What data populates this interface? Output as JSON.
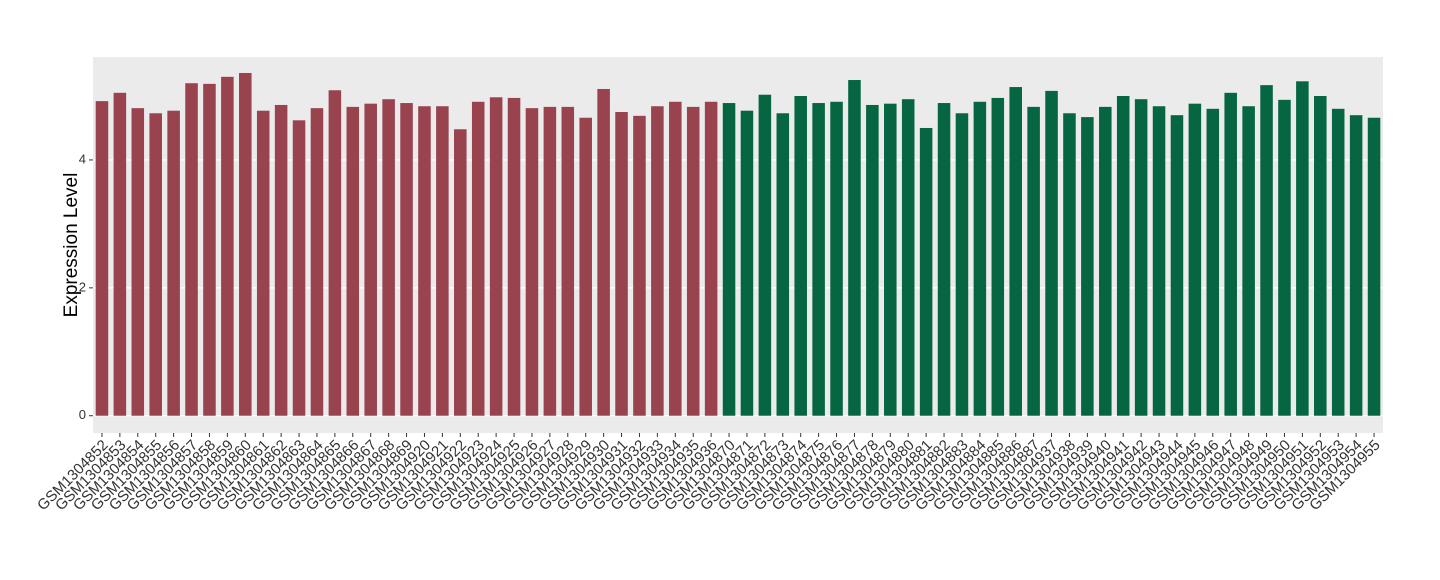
{
  "chart_data": {
    "type": "bar",
    "y_label": "Expression Level",
    "categories": [
      "GSM1304852",
      "GSM1304853",
      "GSM1304854",
      "GSM1304855",
      "GSM1304856",
      "GSM1304857",
      "GSM1304858",
      "GSM1304859",
      "GSM1304860",
      "GSM1304861",
      "GSM1304862",
      "GSM1304863",
      "GSM1304864",
      "GSM1304865",
      "GSM1304866",
      "GSM1304867",
      "GSM1304868",
      "GSM1304869",
      "GSM1304920",
      "GSM1304921",
      "GSM1304922",
      "GSM1304923",
      "GSM1304924",
      "GSM1304925",
      "GSM1304926",
      "GSM1304927",
      "GSM1304928",
      "GSM1304929",
      "GSM1304930",
      "GSM1304931",
      "GSM1304932",
      "GSM1304933",
      "GSM1304934",
      "GSM1304935",
      "GSM1304936",
      "GSM1304870",
      "GSM1304871",
      "GSM1304872",
      "GSM1304873",
      "GSM1304874",
      "GSM1304875",
      "GSM1304876",
      "GSM1304877",
      "GSM1304878",
      "GSM1304879",
      "GSM1304880",
      "GSM1304881",
      "GSM1304882",
      "GSM1304883",
      "GSM1304884",
      "GSM1304885",
      "GSM1304886",
      "GSM1304887",
      "GSM1304937",
      "GSM1304938",
      "GSM1304939",
      "GSM1304940",
      "GSM1304941",
      "GSM1304942",
      "GSM1304943",
      "GSM1304944",
      "GSM1304945",
      "GSM1304946",
      "GSM1304947",
      "GSM1304948",
      "GSM1304949",
      "GSM1304950",
      "GSM1304951",
      "GSM1304952",
      "GSM1304953",
      "GSM1304954",
      "GSM1304955"
    ],
    "values": [
      4.92,
      5.05,
      4.81,
      4.73,
      4.77,
      5.2,
      5.19,
      5.3,
      5.36,
      4.77,
      4.86,
      4.62,
      4.81,
      5.09,
      4.83,
      4.88,
      4.95,
      4.89,
      4.84,
      4.84,
      4.48,
      4.91,
      4.98,
      4.97,
      4.81,
      4.83,
      4.83,
      4.66,
      5.11,
      4.75,
      4.69,
      4.84,
      4.91,
      4.83,
      4.91,
      4.89,
      4.77,
      5.02,
      4.73,
      5.0,
      4.89,
      4.91,
      5.25,
      4.86,
      4.88,
      4.95,
      4.5,
      4.89,
      4.73,
      4.91,
      4.97,
      5.14,
      4.83,
      5.08,
      4.73,
      4.67,
      4.83,
      5.0,
      4.95,
      4.84,
      4.7,
      4.88,
      4.8,
      5.05,
      4.84,
      5.17,
      4.94,
      5.23,
      5.0,
      4.8,
      4.7,
      4.66
    ],
    "colors": [
      "#99434f",
      "#99434f",
      "#99434f",
      "#99434f",
      "#99434f",
      "#99434f",
      "#99434f",
      "#99434f",
      "#99434f",
      "#99434f",
      "#99434f",
      "#99434f",
      "#99434f",
      "#99434f",
      "#99434f",
      "#99434f",
      "#99434f",
      "#99434f",
      "#99434f",
      "#99434f",
      "#99434f",
      "#99434f",
      "#99434f",
      "#99434f",
      "#99434f",
      "#99434f",
      "#99434f",
      "#99434f",
      "#99434f",
      "#99434f",
      "#99434f",
      "#99434f",
      "#99434f",
      "#99434f",
      "#99434f",
      "#066642",
      "#066642",
      "#066642",
      "#066642",
      "#066642",
      "#066642",
      "#066642",
      "#066642",
      "#066642",
      "#066642",
      "#066642",
      "#066642",
      "#066642",
      "#066642",
      "#066642",
      "#066642",
      "#066642",
      "#066642",
      "#066642",
      "#066642",
      "#066642",
      "#066642",
      "#066642",
      "#066642",
      "#066642",
      "#066642",
      "#066642",
      "#066642",
      "#066642",
      "#066642",
      "#066642",
      "#066642",
      "#066642",
      "#066642",
      "#066642",
      "#066642",
      "#066642"
    ],
    "ylim": [
      -0.27,
      5.61
    ],
    "yticks": [
      0,
      2,
      4
    ],
    "grid": true
  }
}
